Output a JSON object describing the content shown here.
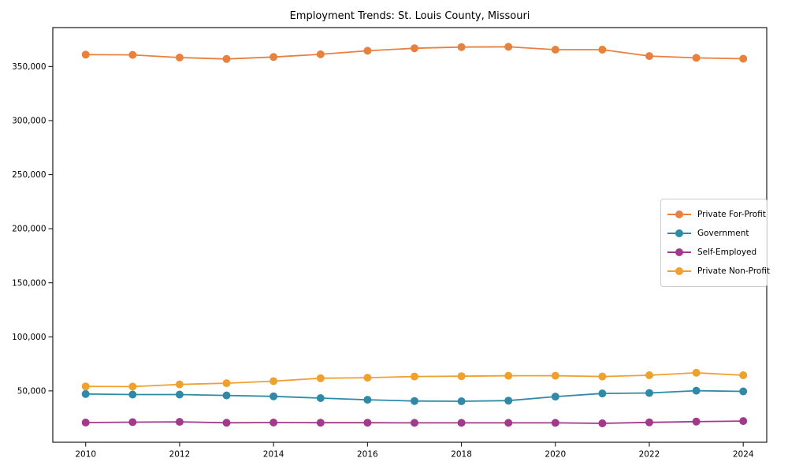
{
  "chart_data": {
    "type": "line",
    "title": "Employment Trends: St. Louis County, Missouri",
    "xlabel": "",
    "ylabel": "",
    "x": [
      2010,
      2011,
      2012,
      2013,
      2014,
      2015,
      2016,
      2017,
      2018,
      2019,
      2020,
      2021,
      2022,
      2023,
      2024
    ],
    "series": [
      {
        "name": "Private For-Profit",
        "color": "#e8813e",
        "values": [
          361000,
          360800,
          358300,
          357000,
          358800,
          361300,
          364600,
          366900,
          368000,
          368200,
          365600,
          365600,
          359700,
          358000,
          357200
        ]
      },
      {
        "name": "Government",
        "color": "#2e8aa6",
        "values": [
          47100,
          46600,
          46600,
          45800,
          44900,
          43300,
          41800,
          40600,
          40400,
          41000,
          44700,
          47600,
          48100,
          50200,
          49500
        ]
      },
      {
        "name": "Self-Employed",
        "color": "#a23a8c",
        "values": [
          20700,
          21100,
          21400,
          20500,
          20700,
          20600,
          20600,
          20400,
          20400,
          20400,
          20400,
          20000,
          20900,
          21600,
          22100
        ]
      },
      {
        "name": "Private Non-Profit",
        "color": "#f0a02c",
        "values": [
          54100,
          54000,
          56000,
          57100,
          59000,
          61700,
          62200,
          63300,
          63600,
          64000,
          64000,
          63300,
          64500,
          66700,
          64500
        ]
      }
    ],
    "xticks": [
      2010,
      2012,
      2014,
      2016,
      2018,
      2020,
      2022,
      2024
    ],
    "yticks": [
      50000,
      100000,
      150000,
      200000,
      250000,
      300000,
      350000
    ],
    "ytick_labels": [
      "50,000",
      "100,000",
      "150,000",
      "200,000",
      "250,000",
      "300,000",
      "350,000"
    ],
    "xlim": [
      2009.3,
      2024.5
    ],
    "ylim": [
      2500,
      386000
    ],
    "grid": false,
    "legend_position": "center right",
    "marker": "circle"
  }
}
